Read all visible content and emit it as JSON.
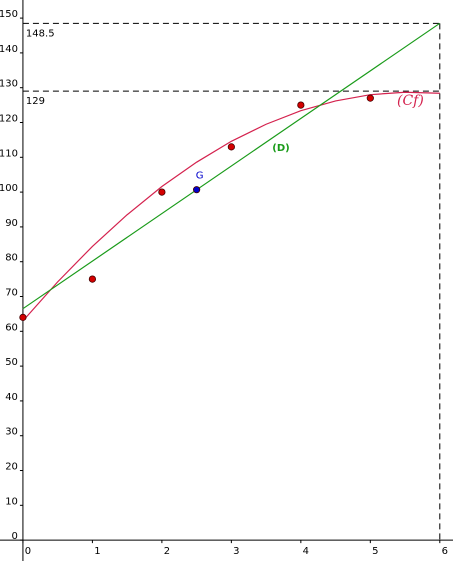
{
  "chart_data": {
    "type": "scatter",
    "xlim": [
      -0.33,
      6.19
    ],
    "ylim": [
      -6,
      155.2
    ],
    "xticks": [
      0,
      1,
      2,
      3,
      4,
      5,
      6
    ],
    "yticks": [
      0,
      10,
      20,
      30,
      40,
      50,
      60,
      70,
      80,
      90,
      100,
      110,
      120,
      130,
      140,
      150
    ],
    "hlines": [
      148.5,
      129
    ],
    "vlines": [
      6
    ],
    "series": [
      {
        "name": "(Cf)",
        "kind": "curve",
        "color": "#d4224e",
        "x": [
          0,
          0.5,
          1,
          1.5,
          2,
          2.5,
          3,
          3.5,
          4,
          4.5,
          5,
          5.5,
          6
        ],
        "values": [
          63,
          74.2,
          84.4,
          93.5,
          101.6,
          108.6,
          114.6,
          119.5,
          123.4,
          126.2,
          128,
          128.7,
          128.4
        ]
      },
      {
        "name": "(D)",
        "kind": "line",
        "color": "#1a9b1a",
        "x": [
          0,
          6
        ],
        "values": [
          66.5,
          148.5
        ]
      },
      {
        "kind": "points",
        "color": "#d40000",
        "x": [
          0,
          1,
          2,
          3,
          4,
          5
        ],
        "values": [
          64,
          75,
          100,
          113,
          125,
          127
        ]
      },
      {
        "name": "G",
        "kind": "points",
        "color": "#0000cc",
        "x": [
          2.5
        ],
        "values": [
          100.7
        ]
      }
    ]
  }
}
